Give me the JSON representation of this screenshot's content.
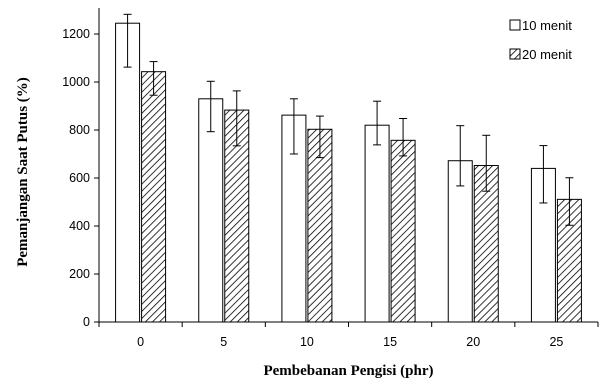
{
  "chart_data": {
    "type": "bar",
    "xlabel": "Pembebanan Pengisi (phr)",
    "ylabel": "Pemanjangan Saat Putus (%)",
    "categories": [
      "0",
      "5",
      "10",
      "15",
      "20",
      "25"
    ],
    "ylim": [
      0,
      1300
    ],
    "yticks": [
      0,
      200,
      400,
      600,
      800,
      1000,
      1200
    ],
    "grid": false,
    "legend_position": "top-right",
    "series": [
      {
        "name": "10 menit",
        "fill": "white",
        "values": [
          1245,
          930,
          862,
          820,
          672,
          640
        ],
        "err_high": [
          1282,
          1003,
          930,
          920,
          818,
          735
        ],
        "err_low": [
          1062,
          793,
          700,
          738,
          567,
          496
        ]
      },
      {
        "name": "20 menit",
        "fill": "hatched",
        "values": [
          1043,
          883,
          803,
          757,
          652,
          511
        ],
        "err_high": [
          1085,
          963,
          858,
          848,
          778,
          601
        ],
        "err_low": [
          945,
          734,
          685,
          692,
          545,
          403
        ]
      }
    ]
  }
}
